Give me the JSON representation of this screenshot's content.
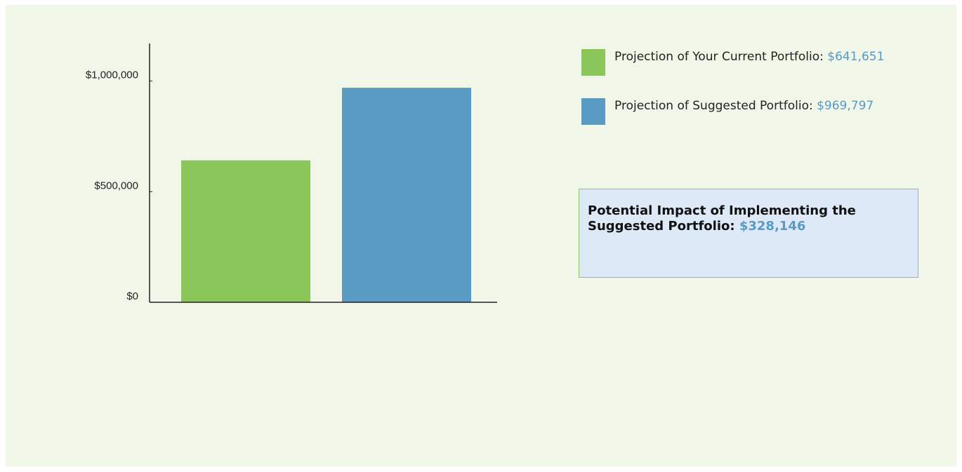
{
  "chart_data": {
    "type": "bar",
    "categories": [
      null,
      null
    ],
    "values": [
      641651,
      969797
    ],
    "colors": [
      "#8bc65a",
      "#5a9bc4"
    ],
    "legend": [
      "Projection of Your Current Portfolio:",
      "Projection of Suggested Portfolio:"
    ],
    "value_labels": [
      "$641,651",
      "$969,797"
    ],
    "ylim": [
      0,
      1170000
    ],
    "yticks": [
      {
        "value": 0,
        "label": "$0"
      },
      {
        "value": 500000,
        "label": "$500,000"
      },
      {
        "value": 1000000,
        "label": "$1,000,000"
      }
    ]
  },
  "impact": {
    "label": "Potential Impact of Implementing the Suggested Portfolio:",
    "value_label": "$328,146"
  }
}
